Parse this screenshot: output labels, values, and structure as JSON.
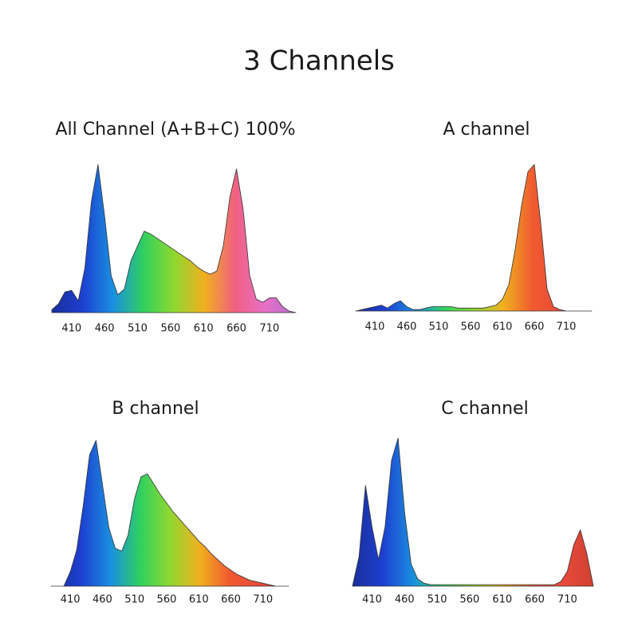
{
  "title": "3 Channels",
  "chart_data": [
    {
      "type": "area",
      "title": "All Channel (A+B+C) 100%",
      "x": [
        380,
        390,
        400,
        410,
        420,
        430,
        440,
        450,
        460,
        470,
        480,
        490,
        500,
        510,
        520,
        530,
        540,
        550,
        560,
        570,
        580,
        590,
        600,
        610,
        620,
        630,
        640,
        650,
        660,
        670,
        680,
        690,
        700,
        710,
        720,
        730,
        740,
        750
      ],
      "values": [
        2,
        6,
        14,
        15,
        8,
        30,
        75,
        100,
        65,
        25,
        12,
        16,
        35,
        45,
        55,
        53,
        50,
        47,
        44,
        41,
        38,
        35,
        31,
        28,
        26,
        28,
        45,
        78,
        97,
        70,
        25,
        9,
        7,
        10,
        10,
        4,
        1,
        0
      ],
      "xlim": [
        380,
        750
      ],
      "ylim": [
        0,
        105
      ],
      "xticks": [
        410,
        460,
        510,
        560,
        610,
        660,
        710
      ],
      "colors": [
        "#1a2f9a",
        "#1d3fd0",
        "#1a8ee0",
        "#2fd060",
        "#8fd830",
        "#f0b020",
        "#f06080",
        "#e870c8",
        "#b070c8"
      ]
    },
    {
      "type": "area",
      "title": "A channel",
      "x": [
        380,
        390,
        400,
        410,
        420,
        430,
        440,
        450,
        460,
        470,
        480,
        490,
        500,
        510,
        520,
        530,
        540,
        550,
        560,
        570,
        580,
        590,
        600,
        610,
        620,
        630,
        640,
        650,
        660,
        670,
        680,
        690,
        700,
        710,
        720,
        730,
        740,
        750
      ],
      "values": [
        0,
        1,
        2,
        3,
        4,
        2,
        5,
        7,
        3,
        1,
        1,
        2,
        3,
        3,
        3,
        3,
        2,
        2,
        2,
        2,
        2,
        3,
        4,
        8,
        18,
        42,
        72,
        95,
        100,
        60,
        15,
        3,
        1,
        0,
        0,
        0,
        0,
        0
      ],
      "xlim": [
        380,
        750
      ],
      "ylim": [
        0,
        105
      ],
      "xticks": [
        410,
        460,
        510,
        560,
        610,
        660,
        710
      ],
      "colors": [
        "#1a2f9a",
        "#1d3fd0",
        "#1a8ee0",
        "#2fd060",
        "#8fd830",
        "#f0b020",
        "#f05a30",
        "#e84a3a",
        "#d04030"
      ]
    },
    {
      "type": "area",
      "title": "B channel",
      "x": [
        380,
        390,
        400,
        410,
        420,
        430,
        440,
        450,
        460,
        470,
        480,
        490,
        500,
        510,
        520,
        530,
        540,
        550,
        560,
        570,
        580,
        590,
        600,
        610,
        620,
        630,
        640,
        650,
        660,
        670,
        680,
        690,
        700,
        710,
        720,
        730,
        740,
        750
      ],
      "values": [
        0,
        0,
        0,
        10,
        25,
        55,
        90,
        100,
        70,
        40,
        26,
        24,
        35,
        60,
        75,
        77,
        70,
        63,
        57,
        51,
        46,
        41,
        36,
        31,
        27,
        22,
        18,
        14,
        11,
        8,
        6,
        4,
        3,
        2,
        1,
        0,
        0,
        0
      ],
      "xlim": [
        380,
        750
      ],
      "ylim": [
        0,
        105
      ],
      "xticks": [
        410,
        460,
        510,
        560,
        610,
        660,
        710
      ],
      "colors": [
        "#1a2f9a",
        "#1d3fd0",
        "#1a8ee0",
        "#2fd060",
        "#8fd830",
        "#f0b020",
        "#f05a30",
        "#e84a3a",
        "#d04030"
      ]
    },
    {
      "type": "area",
      "title": "C channel",
      "x": [
        380,
        390,
        400,
        410,
        420,
        430,
        440,
        450,
        460,
        470,
        480,
        490,
        500,
        510,
        520,
        530,
        540,
        550,
        560,
        570,
        580,
        590,
        600,
        610,
        620,
        630,
        640,
        650,
        660,
        670,
        680,
        690,
        700,
        710,
        720,
        730,
        740,
        750
      ],
      "values": [
        0,
        20,
        68,
        40,
        18,
        40,
        85,
        100,
        50,
        15,
        5,
        2,
        1,
        1,
        1,
        1,
        1,
        1,
        1,
        1,
        1,
        1,
        1,
        1,
        1,
        1,
        1,
        1,
        1,
        1,
        1,
        1,
        3,
        10,
        28,
        38,
        22,
        0
      ],
      "xlim": [
        380,
        750
      ],
      "ylim": [
        0,
        105
      ],
      "xticks": [
        410,
        460,
        510,
        560,
        610,
        660,
        710
      ],
      "colors": [
        "#1a2f9a",
        "#1d3fd0",
        "#1a8ee0",
        "#2fd060",
        "#8fd830",
        "#f0b020",
        "#f05a30",
        "#e84a3a",
        "#d04030"
      ]
    }
  ]
}
